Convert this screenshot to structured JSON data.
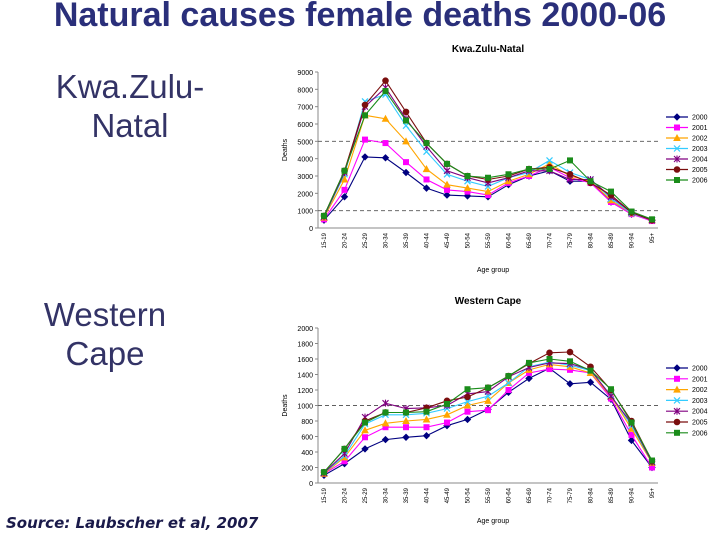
{
  "title": "Natural causes female deaths 2000-06",
  "regions": {
    "kzn": "Kwa.Zulu-Natal",
    "wc": "Western Cape"
  },
  "source": "Source: Laubscher et al, 2007",
  "colors": [
    "#000080",
    "#ff00ff",
    "#ffa500",
    "#33ccff",
    "#800080",
    "#7a0e0e",
    "#1a8c1a"
  ],
  "chart_data": [
    {
      "type": "line",
      "title": "Kwa.Zulu-Natal",
      "xlabel": "Age group",
      "ylabel": "Deaths",
      "ylim": [
        0,
        9000
      ],
      "yticks": [
        0,
        1000,
        2000,
        3000,
        4000,
        5000,
        6000,
        7000,
        8000,
        9000
      ],
      "categories": [
        "15-19",
        "20-24",
        "25-29",
        "30-34",
        "35-39",
        "40-44",
        "45-49",
        "50-54",
        "55-59",
        "60-64",
        "65-69",
        "70-74",
        "75-79",
        "80-84",
        "85-89",
        "90-94",
        "95+"
      ],
      "series": [
        {
          "name": "2000",
          "values": [
            450,
            1800,
            4100,
            4050,
            3200,
            2300,
            1900,
            1850,
            1800,
            2500,
            3000,
            3300,
            2700,
            2700,
            1500,
            800,
            450
          ]
        },
        {
          "name": "2001",
          "values": [
            500,
            2200,
            5100,
            4900,
            3800,
            2800,
            2200,
            2100,
            1900,
            2600,
            3000,
            3500,
            2900,
            2600,
            1500,
            800,
            400
          ]
        },
        {
          "name": "2002",
          "values": [
            600,
            2800,
            6500,
            6300,
            5000,
            3400,
            2500,
            2300,
            2100,
            2700,
            3100,
            3700,
            3000,
            2700,
            1600,
            850,
            450
          ]
        },
        {
          "name": "2003",
          "values": [
            650,
            3100,
            7300,
            7700,
            5900,
            4400,
            3100,
            2700,
            2400,
            2900,
            3200,
            3900,
            3200,
            2800,
            1700,
            850,
            450
          ]
        },
        {
          "name": "2004",
          "values": [
            650,
            3200,
            7000,
            8100,
            6300,
            4700,
            3300,
            2900,
            2600,
            2900,
            3300,
            3300,
            2800,
            2800,
            1800,
            900,
            450
          ]
        },
        {
          "name": "2005",
          "values": [
            700,
            3300,
            7100,
            8500,
            6700,
            4900,
            3700,
            3000,
            2800,
            3000,
            3400,
            3500,
            3100,
            2600,
            1900,
            900,
            450
          ]
        },
        {
          "name": "2006",
          "values": [
            700,
            3300,
            6500,
            7900,
            6200,
            4900,
            3700,
            3000,
            2900,
            3100,
            3400,
            3400,
            3900,
            2700,
            2100,
            950,
            500
          ]
        }
      ]
    },
    {
      "type": "line",
      "title": "Western Cape",
      "xlabel": "Age group",
      "ylabel": "Deaths",
      "ylim": [
        0,
        2000
      ],
      "yticks": [
        0,
        200,
        400,
        600,
        800,
        1000,
        1200,
        1400,
        1600,
        1800,
        2000
      ],
      "categories": [
        "15-19",
        "20-24",
        "25-29",
        "30-34",
        "35-39",
        "40-44",
        "45-49",
        "50-54",
        "55-59",
        "60-64",
        "65-69",
        "70-74",
        "75-79",
        "80-84",
        "85-89",
        "90-94",
        "95+"
      ],
      "series": [
        {
          "name": "2000",
          "values": [
            100,
            250,
            440,
            560,
            590,
            610,
            740,
            820,
            950,
            1170,
            1350,
            1480,
            1280,
            1300,
            1080,
            550,
            200
          ]
        },
        {
          "name": "2001",
          "values": [
            120,
            280,
            590,
            720,
            720,
            720,
            780,
            920,
            940,
            1200,
            1420,
            1470,
            1460,
            1420,
            1090,
            620,
            200
          ]
        },
        {
          "name": "2002",
          "values": [
            120,
            330,
            680,
            770,
            800,
            820,
            880,
            1000,
            1060,
            1290,
            1460,
            1530,
            1500,
            1420,
            1120,
            700,
            260
          ]
        },
        {
          "name": "2003",
          "values": [
            130,
            350,
            760,
            880,
            880,
            900,
            960,
            1050,
            1120,
            1290,
            1500,
            1560,
            1520,
            1450,
            1130,
            740,
            270
          ]
        },
        {
          "name": "2004",
          "values": [
            130,
            380,
            850,
            1030,
            960,
            970,
            1000,
            1150,
            1180,
            1370,
            1490,
            1550,
            1540,
            1460,
            1120,
            770,
            270
          ]
        },
        {
          "name": "2005",
          "values": [
            140,
            440,
            800,
            910,
            910,
            970,
            1060,
            1110,
            1230,
            1380,
            1540,
            1680,
            1690,
            1500,
            1200,
            800,
            280
          ]
        },
        {
          "name": "2006",
          "values": [
            140,
            440,
            780,
            910,
            910,
            920,
            1020,
            1210,
            1230,
            1380,
            1550,
            1600,
            1570,
            1450,
            1210,
            780,
            290
          ]
        }
      ]
    }
  ]
}
